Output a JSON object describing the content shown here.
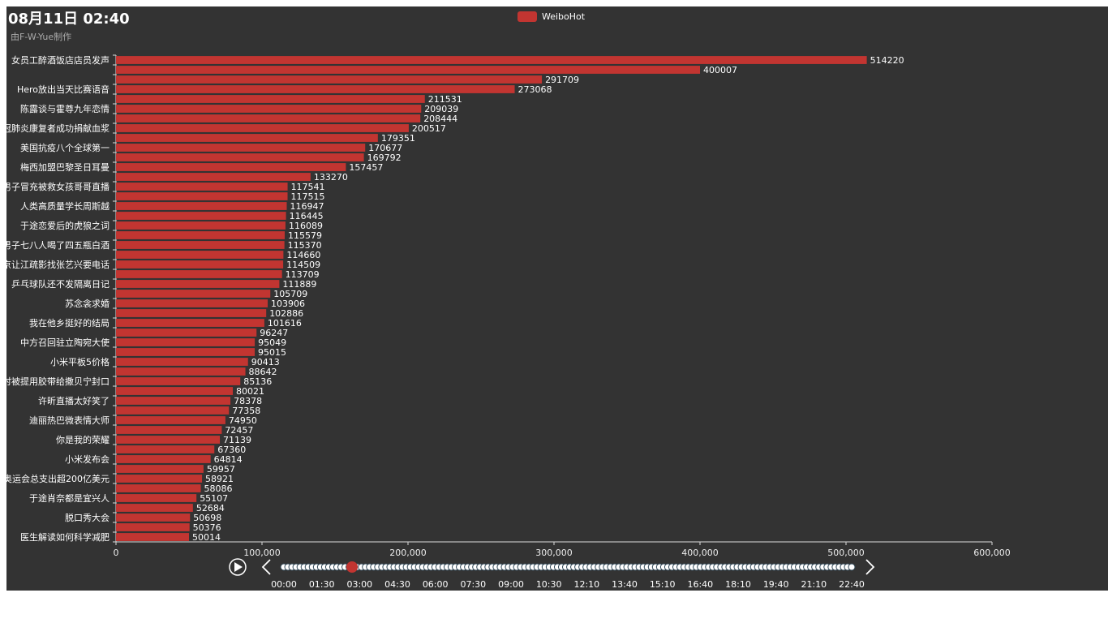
{
  "title": "08月11日 02:40",
  "subtitle": "由F-W-Yue制作",
  "colors": {
    "background": "#333333",
    "bar": "#c23531",
    "text": "#ffffff",
    "subtext": "#aaaaaa",
    "slider_fill": "#ffffff",
    "slider_border": "#2f4554"
  },
  "chart_data": {
    "type": "bar",
    "orientation": "horizontal",
    "series": [
      {
        "name": "WeiboHot"
      }
    ],
    "xlim": [
      0,
      600000
    ],
    "x_ticks": [
      "0",
      "100,000",
      "200,000",
      "300,000",
      "400,000",
      "500,000",
      "600,000"
    ],
    "categories": [
      "女员工醉酒饭店店员发声",
      "",
      "",
      "Hero放出当天比赛语音",
      "",
      "陈露谈与霍尊九年恋情",
      "",
      "新冠肺炎康复者成功捐献血浆",
      "",
      "美国抗疫八个全球第一",
      "",
      "梅西加盟巴黎圣日耳曼",
      "",
      "男子冒充被救女孩哥哥直播",
      "",
      "人类高质量学长周斯越",
      "",
      "于途恋爱后的虎狼之词",
      "",
      "男子七八人喝了四五瓶白酒",
      "",
      "吴京让江疏影找张艺兴要电话",
      "",
      "乒乓球队还不发隔离日记",
      "",
      "苏念衾求婚",
      "",
      "我在他乡挺好的结局",
      "",
      "中方召回驻立陶宛大使",
      "",
      "小米平板5价格",
      "",
      "美国女子跑步时被提用胶带给撒贝宁封口",
      "",
      "许昕直播太好笑了",
      "",
      "迪丽热巴微表情大师",
      "",
      "你是我的荣耀",
      "",
      "小米发布会",
      "",
      "东京奥运会总支出超200亿美元",
      "",
      "于途肖奈都是宜兴人",
      "",
      "脱口秀大会",
      "",
      "医生解读如何科学减肥"
    ],
    "values": [
      514220,
      400007,
      291709,
      273068,
      211531,
      209039,
      208444,
      200517,
      179351,
      170677,
      169792,
      157457,
      133270,
      117541,
      117515,
      116947,
      116445,
      116089,
      115579,
      115370,
      114660,
      114509,
      113709,
      111889,
      105709,
      103906,
      102886,
      101616,
      96247,
      95049,
      95015,
      90413,
      88642,
      85136,
      80021,
      78378,
      77358,
      74950,
      72457,
      71139,
      67360,
      64814,
      59957,
      58921,
      58086,
      55107,
      52684,
      50698,
      50376,
      50014
    ]
  },
  "timeline": {
    "times": [
      "00:00",
      "01:30",
      "03:00",
      "04:30",
      "06:00",
      "07:30",
      "09:00",
      "10:30",
      "12:10",
      "13:40",
      "15:10",
      "16:40",
      "18:10",
      "19:40",
      "21:10",
      "22:40"
    ],
    "current_index": 5,
    "current_position": 0.12,
    "play_icon": "play-circle-icon",
    "prev_icon": "chevron-left-icon",
    "next_icon": "chevron-right-icon"
  }
}
